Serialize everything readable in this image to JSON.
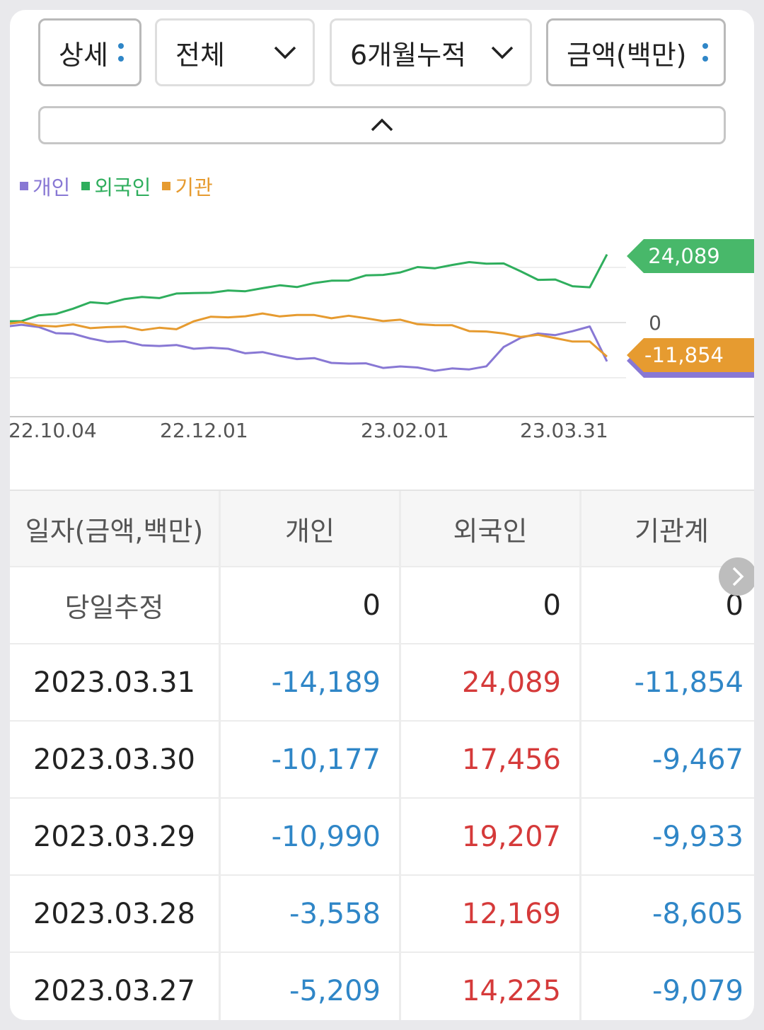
{
  "filters": {
    "detail": "상세",
    "market": "전체",
    "period": "6개월누적",
    "unit": "금액(백만)"
  },
  "legend": [
    {
      "label": "개인",
      "color": "#8878d4"
    },
    {
      "label": "외국인",
      "color": "#2fae5d"
    },
    {
      "label": "기관",
      "color": "#e69b30"
    }
  ],
  "chart_data": {
    "type": "line",
    "x_ticks": [
      "22.10.04",
      "22.12.01",
      "23.02.01",
      "23.03.31"
    ],
    "y_axis_label_zero": "0",
    "series": [
      {
        "name": "외국인",
        "color": "#2fae5d",
        "last_value_label": "24,089",
        "values": [
          500,
          1000,
          2000,
          3500,
          5200,
          6800,
          7500,
          8300,
          9000,
          9500,
          10000,
          10800,
          11200,
          11000,
          11800,
          12500,
          13000,
          13500,
          14000,
          15000,
          15800,
          16500,
          17500,
          18500,
          19500,
          20200,
          20800,
          21500,
          22000,
          21000,
          18500,
          16000,
          15000,
          13500,
          13000,
          24089
        ]
      },
      {
        "name": "개인",
        "color": "#8878d4",
        "last_value_label": "",
        "values": [
          -1000,
          -900,
          -2000,
          -3200,
          -4500,
          -5800,
          -6500,
          -7400,
          -7900,
          -8300,
          -8700,
          -8900,
          -9300,
          -9800,
          -10500,
          -11200,
          -12000,
          -12800,
          -13500,
          -14200,
          -14800,
          -15300,
          -15800,
          -16200,
          -16500,
          -16900,
          -17200,
          -16800,
          -15500,
          -9500,
          -5000,
          -4000,
          -5000,
          -2500,
          -1800,
          -14189
        ]
      },
      {
        "name": "기관",
        "color": "#e69b30",
        "last_value_label": "-11,854",
        "values": [
          0,
          -400,
          -900,
          -1100,
          -1300,
          -1500,
          -1700,
          -1900,
          -2100,
          -2300,
          -2500,
          1000,
          1500,
          2200,
          2500,
          2700,
          2800,
          2600,
          2400,
          2200,
          2000,
          1600,
          1000,
          400,
          -200,
          -800,
          -1500,
          -2500,
          -3500,
          -4200,
          -4600,
          -5000,
          -5500,
          -6500,
          -7500,
          -11854
        ]
      }
    ]
  },
  "table": {
    "headers": [
      "일자(금액,백만)",
      "개인",
      "외국인",
      "기관계"
    ],
    "today": {
      "label": "당일추정",
      "individual": "0",
      "foreign": "0",
      "institution": "0"
    },
    "rows": [
      {
        "date": "2023.03.31",
        "individual": "-14,189",
        "foreign": "24,089",
        "institution": "-11,854"
      },
      {
        "date": "2023.03.30",
        "individual": "-10,177",
        "foreign": "17,456",
        "institution": "-9,467"
      },
      {
        "date": "2023.03.29",
        "individual": "-10,990",
        "foreign": "19,207",
        "institution": "-9,933"
      },
      {
        "date": "2023.03.28",
        "individual": "-3,558",
        "foreign": "12,169",
        "institution": "-8,605"
      },
      {
        "date": "2023.03.27",
        "individual": "-5,209",
        "foreign": "14,225",
        "institution": "-9,079"
      }
    ]
  }
}
